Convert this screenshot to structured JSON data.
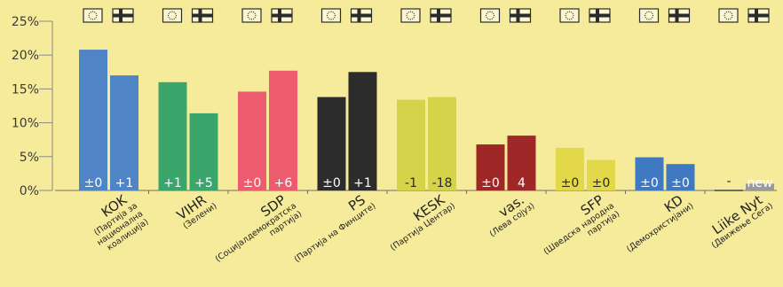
{
  "chart_data": {
    "type": "bar",
    "ylim": [
      0,
      25
    ],
    "yticks": [
      "0%",
      "5%",
      "10%",
      "15%",
      "20%",
      "25%"
    ],
    "grid": false,
    "series": [
      {
        "icon": "eu-flag-icon",
        "values": [
          20.8,
          16.0,
          14.6,
          13.8,
          13.4,
          6.8,
          6.3,
          4.9,
          0.0
        ]
      },
      {
        "icon": "finland-flag-icon",
        "values": [
          17.0,
          11.4,
          17.7,
          17.5,
          13.8,
          8.1,
          4.5,
          3.9,
          1.0
        ]
      }
    ],
    "categories": [
      {
        "name": "KOK",
        "sub": [
          "(Партија за",
          "национална",
          "коалиција)"
        ],
        "color": "#4f84c6",
        "labels": [
          "±0",
          "+1"
        ]
      },
      {
        "name": "VIHR",
        "sub": [
          "(Зелени)"
        ],
        "color": "#3aa66b",
        "labels": [
          "+1",
          "+5"
        ]
      },
      {
        "name": "SDP",
        "sub": [
          "(Социјалдемократска",
          "партија)"
        ],
        "color": "#ec5c6e",
        "labels": [
          "±0",
          "+6"
        ]
      },
      {
        "name": "PS",
        "sub": [
          "(Партија на Финците)"
        ],
        "color": "#2c2c2c",
        "labels": [
          "±0",
          "+1"
        ]
      },
      {
        "name": "KESK",
        "sub": [
          "(Партија Центар)"
        ],
        "color": "#d6d24a",
        "labels": [
          "-1",
          "-18"
        ]
      },
      {
        "name": "vas.",
        "sub": [
          "(Лева сојуз)"
        ],
        "color": "#a02727",
        "labels": [
          "±0",
          "4"
        ]
      },
      {
        "name": "SFP",
        "sub": [
          "(Шведска народна",
          "партија)"
        ],
        "color": "#e2d84a",
        "labels": [
          "±0",
          "±0"
        ]
      },
      {
        "name": "KD",
        "sub": [
          "(Демохристијани)"
        ],
        "color": "#3f79c2",
        "labels": [
          "±0",
          "±0"
        ]
      },
      {
        "name": "Liike Nyt",
        "sub": [
          "(Движење Сега)"
        ],
        "color": "#9a9a9a",
        "labels": [
          "-",
          "new"
        ]
      }
    ]
  }
}
